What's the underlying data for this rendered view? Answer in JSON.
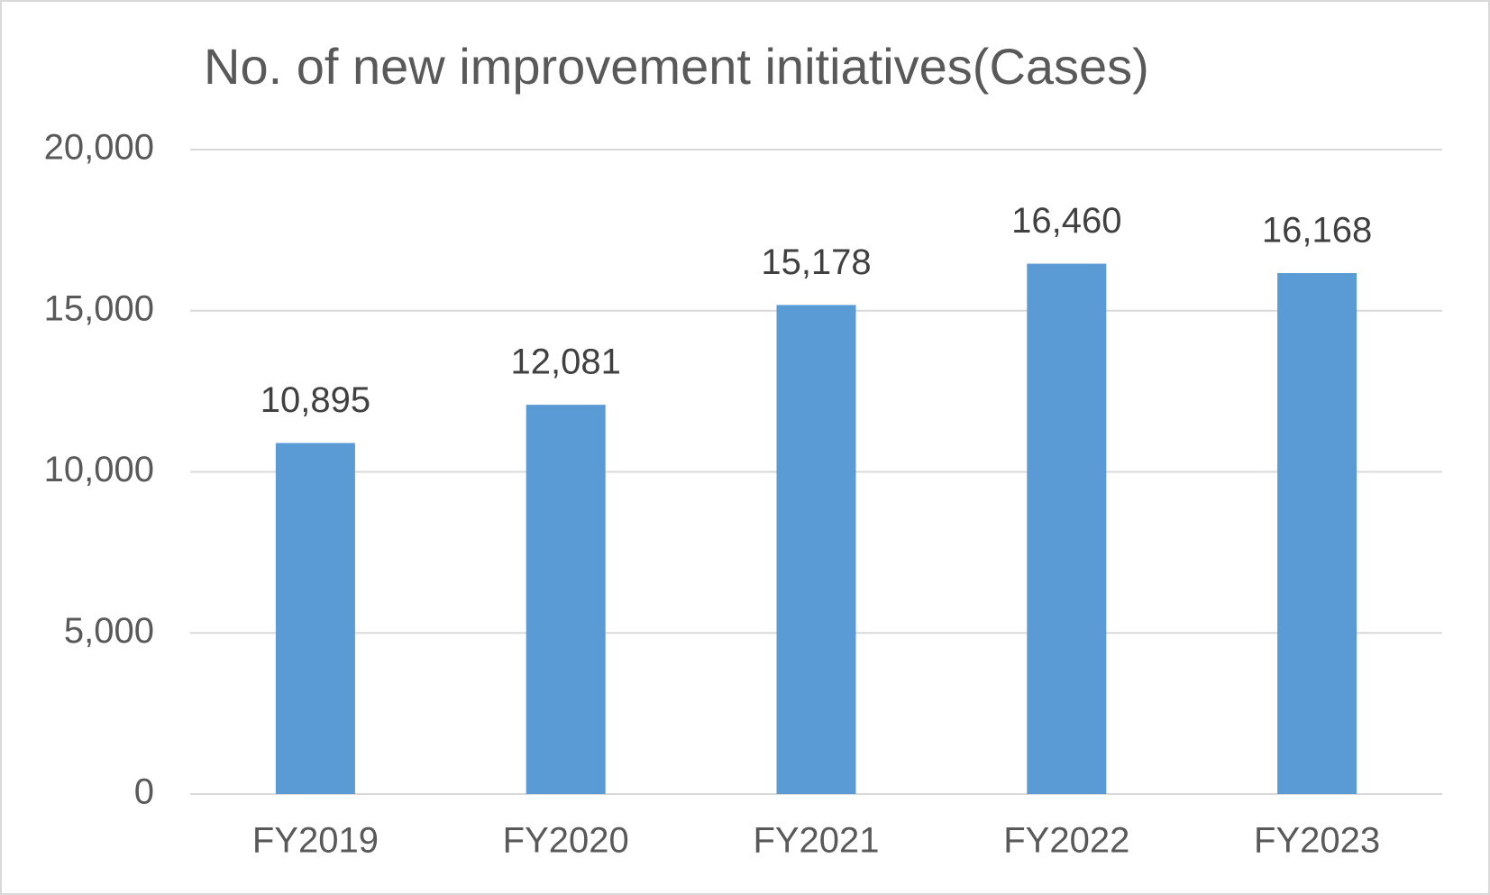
{
  "chart_data": {
    "type": "bar",
    "title": "No. of new improvement initiatives(Cases)",
    "categories": [
      "FY2019",
      "FY2020",
      "FY2021",
      "FY2022",
      "FY2023"
    ],
    "values": [
      10895,
      12081,
      15178,
      16460,
      16168
    ],
    "value_labels": [
      "10,895",
      "12,081",
      "15,178",
      "16,460",
      "16,168"
    ],
    "color": "#5b9bd5",
    "ylim": [
      0,
      20000
    ],
    "yticks": [
      0,
      {
        "value": 5000,
        "label": "5,000"
      },
      {
        "value": 10000,
        "label": "10,000"
      },
      {
        "value": 15000,
        "label": "15,000"
      },
      {
        "value": 20000,
        "label": "20,000"
      }
    ],
    "grid": true
  }
}
